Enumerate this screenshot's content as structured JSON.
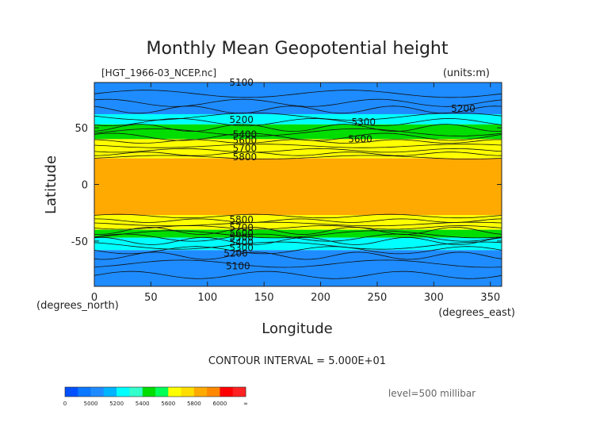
{
  "chart_data": {
    "type": "contour",
    "title": "Monthly Mean Geopotential height",
    "file_label": "[HGT_1966-03_NCEP.nc]",
    "units_label": "(units:m)",
    "xlabel": "Longitude",
    "ylabel": "Latitude",
    "x_unit_label": "(degrees_east)",
    "y_unit_label": "(degrees_north)",
    "xlim": [
      0,
      360
    ],
    "ylim": [
      -90,
      90
    ],
    "x_ticks": [
      0,
      50,
      100,
      150,
      200,
      250,
      300,
      350
    ],
    "y_ticks": [
      50,
      0,
      -50
    ],
    "contour_interval_text": "CONTOUR INTERVAL = 5.000E+01",
    "level_text": "level=500 millibar",
    "contour_labels": [
      {
        "text": "5100",
        "x": 130,
        "y": 90
      },
      {
        "text": "5200",
        "x": 130,
        "y": 57
      },
      {
        "text": "5400",
        "x": 133,
        "y": 44
      },
      {
        "text": "5600",
        "x": 133,
        "y": 39
      },
      {
        "text": "5700",
        "x": 133,
        "y": 32
      },
      {
        "text": "5800",
        "x": 133,
        "y": 24
      },
      {
        "text": "5300",
        "x": 238,
        "y": 55
      },
      {
        "text": "5600",
        "x": 235,
        "y": 40
      },
      {
        "text": "5200",
        "x": 326,
        "y": 67
      },
      {
        "text": "5800",
        "x": 130,
        "y": -31
      },
      {
        "text": "5700",
        "x": 130,
        "y": -38
      },
      {
        "text": "5600",
        "x": 130,
        "y": -43
      },
      {
        "text": "5500",
        "x": 130,
        "y": -47
      },
      {
        "text": "5400",
        "x": 130,
        "y": -51
      },
      {
        "text": "5300",
        "x": 130,
        "y": -56
      },
      {
        "text": "5200",
        "x": 125,
        "y": -61
      },
      {
        "text": "5100",
        "x": 127,
        "y": -72
      }
    ],
    "bands": [
      {
        "from": 90,
        "to": 62,
        "color": "#1e8cff"
      },
      {
        "from": 62,
        "to": 53,
        "color": "#00ffff"
      },
      {
        "from": 53,
        "to": 40,
        "color": "#00dd00"
      },
      {
        "from": 40,
        "to": 23,
        "color": "#ffff00"
      },
      {
        "from": 23,
        "to": -27,
        "color": "#ffaa00"
      },
      {
        "from": -27,
        "to": -40,
        "color": "#ffff00"
      },
      {
        "from": -40,
        "to": -47,
        "color": "#00dd00"
      },
      {
        "from": -47,
        "to": -58,
        "color": "#00ffff"
      },
      {
        "from": -58,
        "to": -90,
        "color": "#1e8cff"
      }
    ],
    "colorbar": {
      "colors": [
        "#0050ff",
        "#0a78ff",
        "#1e8cff",
        "#00b4ff",
        "#00ffff",
        "#33ffcc",
        "#00dd00",
        "#00ff55",
        "#ffff00",
        "#ffdd00",
        "#ffaa00",
        "#ff8800",
        "#ff0000",
        "#ff2222"
      ],
      "labels": [
        "0",
        "5000",
        "5200",
        "5400",
        "5600",
        "5800",
        "6000",
        "∞"
      ]
    }
  }
}
